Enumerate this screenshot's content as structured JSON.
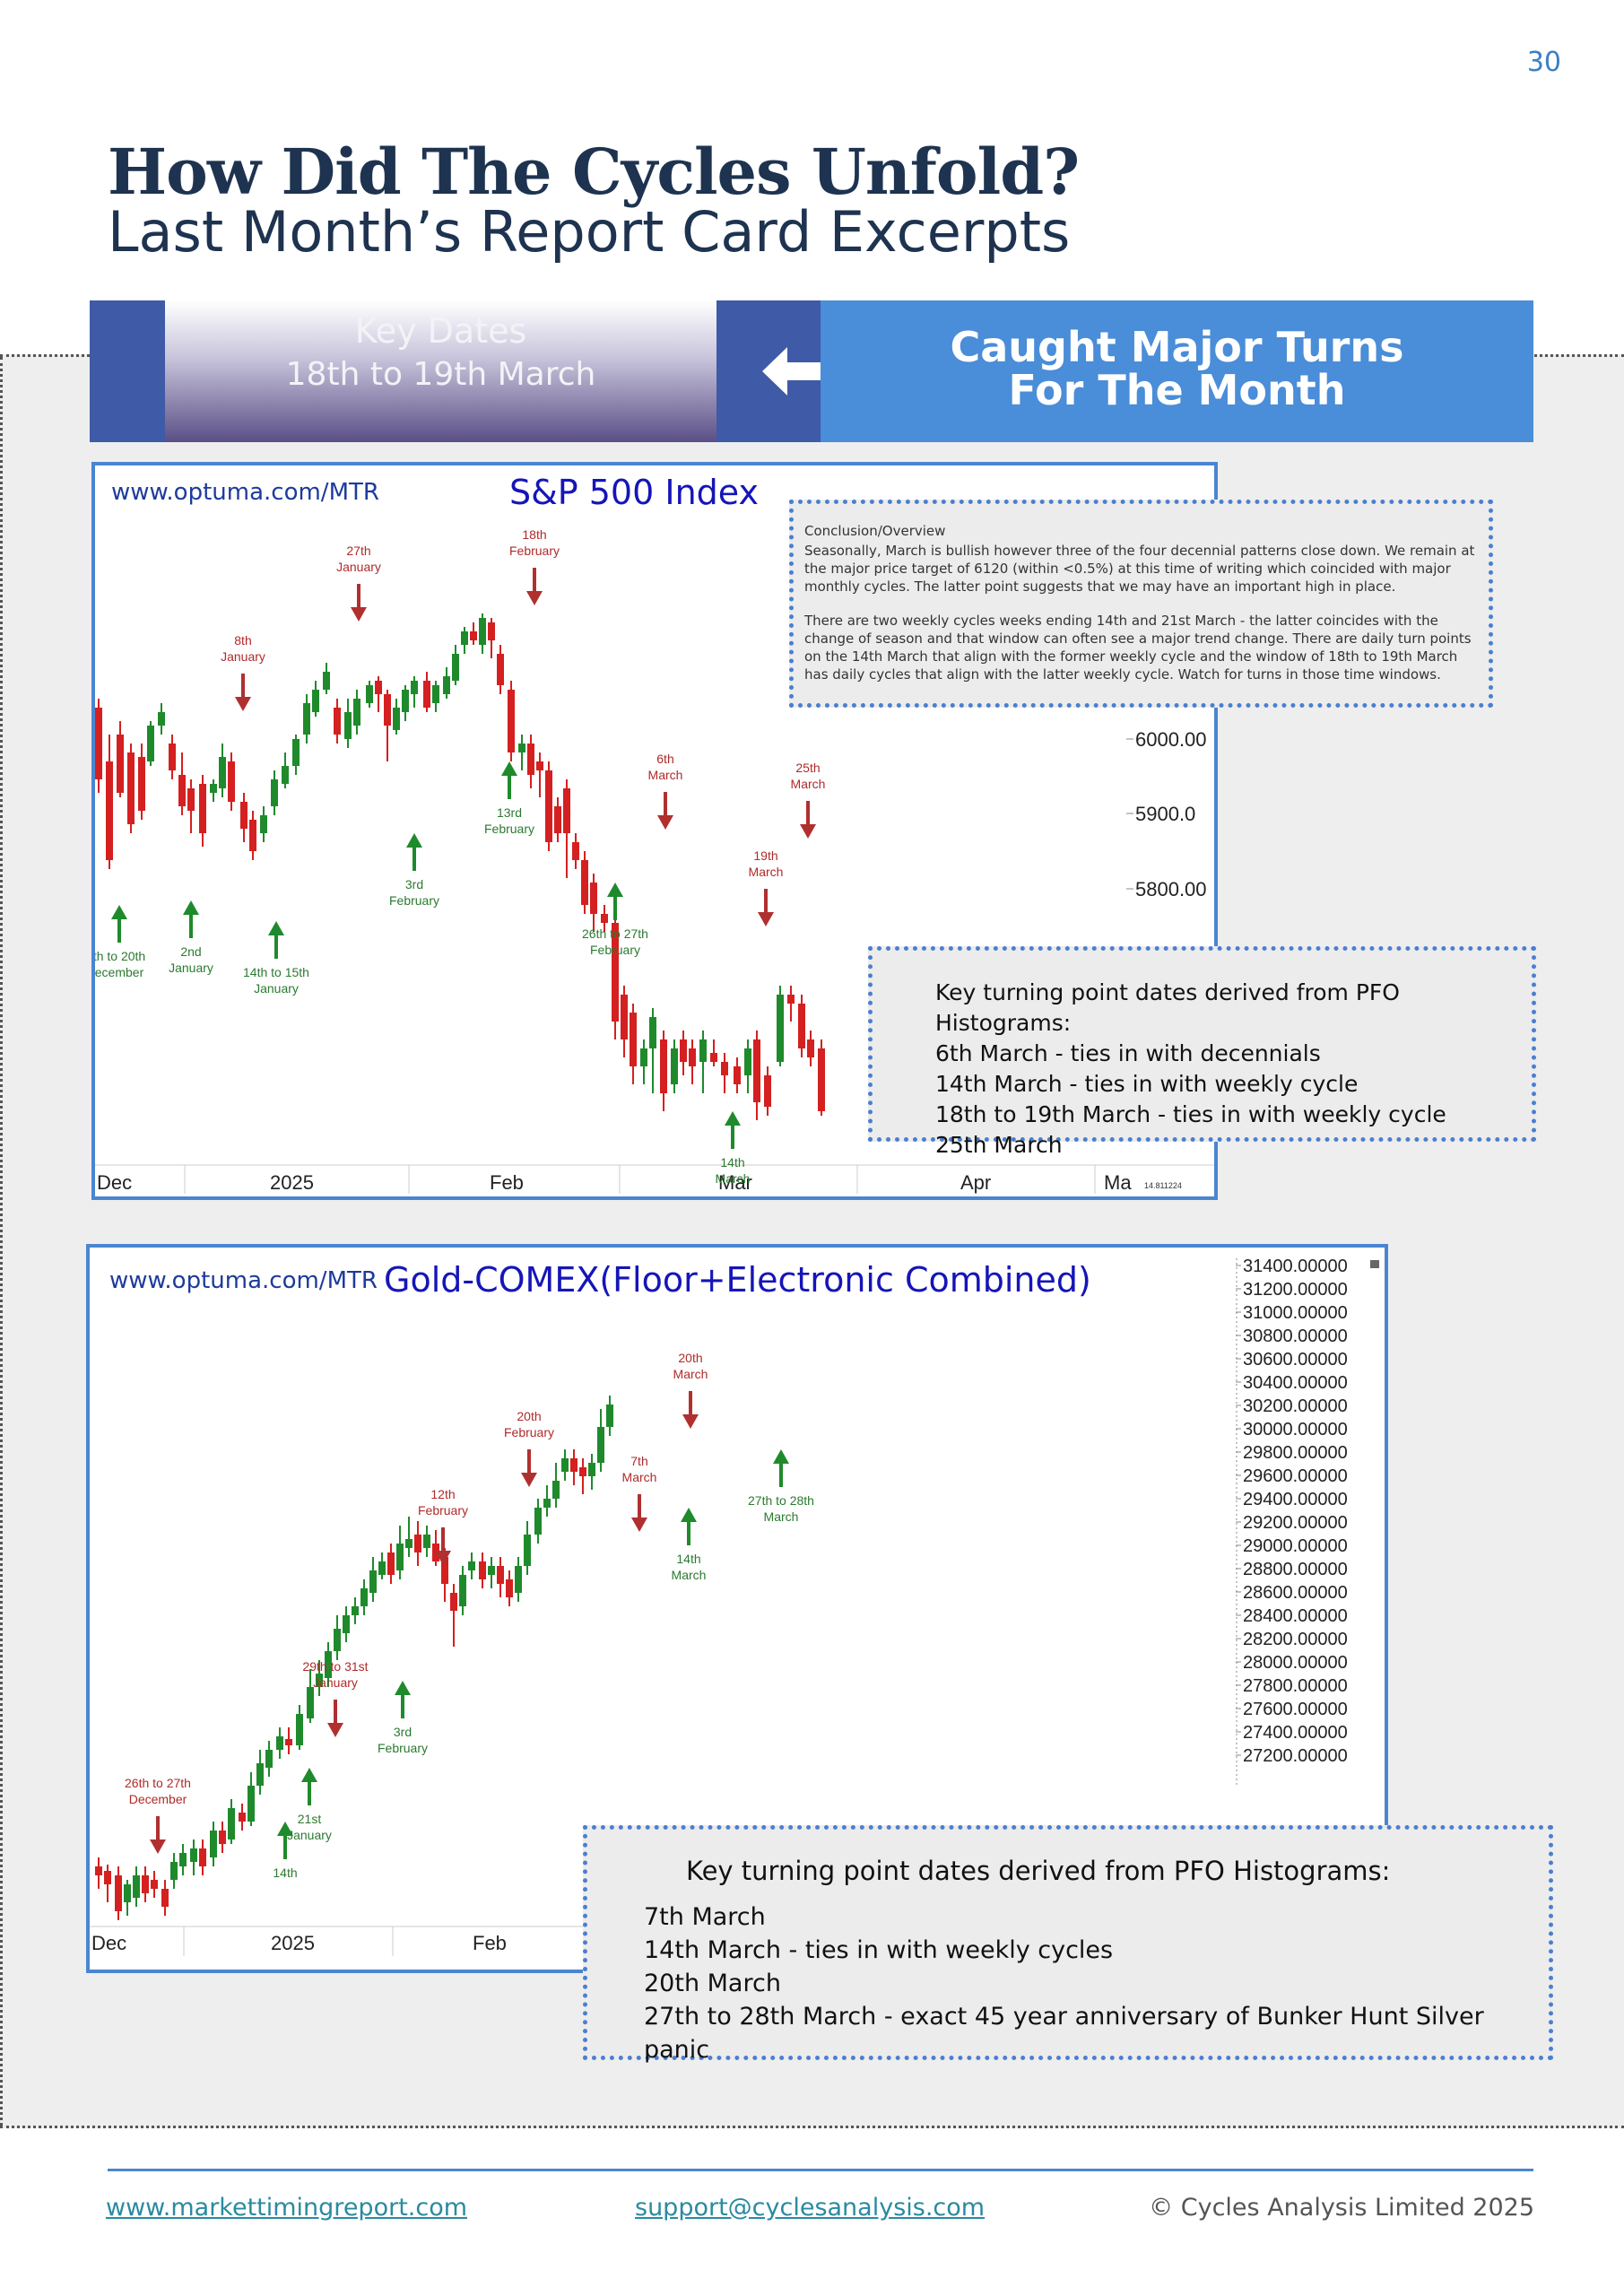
{
  "page_number": "30",
  "heading": {
    "title": "How Did The Cycles Unfold?",
    "subtitle": "Last Month’s Report Card Excerpts"
  },
  "banner": {
    "key_dates_label": "Key Dates",
    "key_dates_range": "18th to 19th March",
    "arrow_icon": "double-arrow-icon",
    "result_line1": "Caught Major Turns",
    "result_line2": "For The Month"
  },
  "sp500": {
    "source": "www.optuma.com/MTR",
    "title": "S&P 500 Index",
    "price_labels": [
      "6000.00",
      "5900.0",
      "5800.00"
    ],
    "x_labels": [
      "Dec",
      "2025",
      "Feb",
      "Mar",
      "Apr",
      "Ma"
    ],
    "corner_readout": "14.811224",
    "annotations_down": [
      {
        "line1": "27th",
        "line2": "January"
      },
      {
        "line1": "18th",
        "line2": "February"
      },
      {
        "line1": "8th",
        "line2": "January"
      },
      {
        "line1": "6th",
        "line2": "March"
      },
      {
        "line1": "25th",
        "line2": "March"
      },
      {
        "line1": "19th",
        "line2": "March"
      }
    ],
    "annotations_up": [
      {
        "line1": "th to 20th",
        "line2": "ecember"
      },
      {
        "line1": "2nd",
        "line2": "January"
      },
      {
        "line1": "14th to 15th",
        "line2": "January"
      },
      {
        "line1": "3rd",
        "line2": "February"
      },
      {
        "line1": "13rd",
        "line2": "February"
      },
      {
        "line1": "26th to 27th",
        "line2": "February"
      },
      {
        "line1": "14th",
        "line2": "March"
      }
    ],
    "overview": {
      "heading": "Conclusion/Overview",
      "para1": "Seasonally, March is bullish however three of the four decennial patterns close down. We remain at the major price target of 6120 (within <0.5%) at this time of writing which coincided with major monthly cycles. The latter point suggests that we may have an important high in place.",
      "para2": "There are two weekly cycles weeks ending 14th and 21st March - the latter coincides with the change of season and that window can often see a major trend change. There are daily turn points on the 14th March that align with the former weekly cycle and the window of 18th to 19th March has daily cycles that align with the latter weekly cycle. Watch for turns in those time windows."
    },
    "key_points": {
      "heading": "Key turning point dates derived from PFO Histograms:",
      "items": [
        "6th March - ties in with decennials",
        "14th March - ties in with weekly cycle",
        "18th to 19th March - ties in with weekly cycle",
        "25th March"
      ]
    }
  },
  "gold": {
    "source": "www.optuma.com/MTR",
    "title": "Gold-COMEX(Floor+Electronic Combined)",
    "price_labels": [
      "31400.00000",
      "31200.00000",
      "31000.00000",
      "30800.00000",
      "30600.00000",
      "30400.00000",
      "30200.00000",
      "30000.00000",
      "29800.00000",
      "29600.00000",
      "29400.00000",
      "29200.00000",
      "29000.00000",
      "28800.00000",
      "28600.00000",
      "28400.00000",
      "28200.00000",
      "28000.00000",
      "27800.00000",
      "27600.00000",
      "27400.00000",
      "27200.00000"
    ],
    "x_labels": [
      "Dec",
      "2025",
      "Feb"
    ],
    "annotations_down": [
      {
        "line1": "20th",
        "line2": "March"
      },
      {
        "line1": "20th",
        "line2": "February"
      },
      {
        "line1": "7th",
        "line2": "March"
      },
      {
        "line1": "12th",
        "line2": "February"
      },
      {
        "line1": "29th to 31st",
        "line2": "January"
      },
      {
        "line1": "26th to 27th",
        "line2": "December"
      }
    ],
    "annotations_up": [
      {
        "line1": "27th to 28th",
        "line2": "March"
      },
      {
        "line1": "14th",
        "line2": "March"
      },
      {
        "line1": "3rd",
        "line2": "February"
      },
      {
        "line1": "21st",
        "line2": "January"
      },
      {
        "line1": "14th",
        "line2": ""
      }
    ],
    "key_points": {
      "heading": "Key turning point dates derived from PFO Histograms:",
      "items": [
        "7th March",
        "14th March - ties in with weekly cycles",
        "20th March",
        "27th to 28th March - exact 45 year anniversary of Bunker Hunt Silver panic"
      ]
    }
  },
  "footer": {
    "site": "www.markettimingreport.com",
    "email": "support@cyclesanalysis.com",
    "copyright": "© Cycles Analysis Limited 2025"
  },
  "colors": {
    "up": "#1f8a2c",
    "down": "#d42020",
    "accent": "#4a86d0",
    "navy": "#1e3350"
  }
}
